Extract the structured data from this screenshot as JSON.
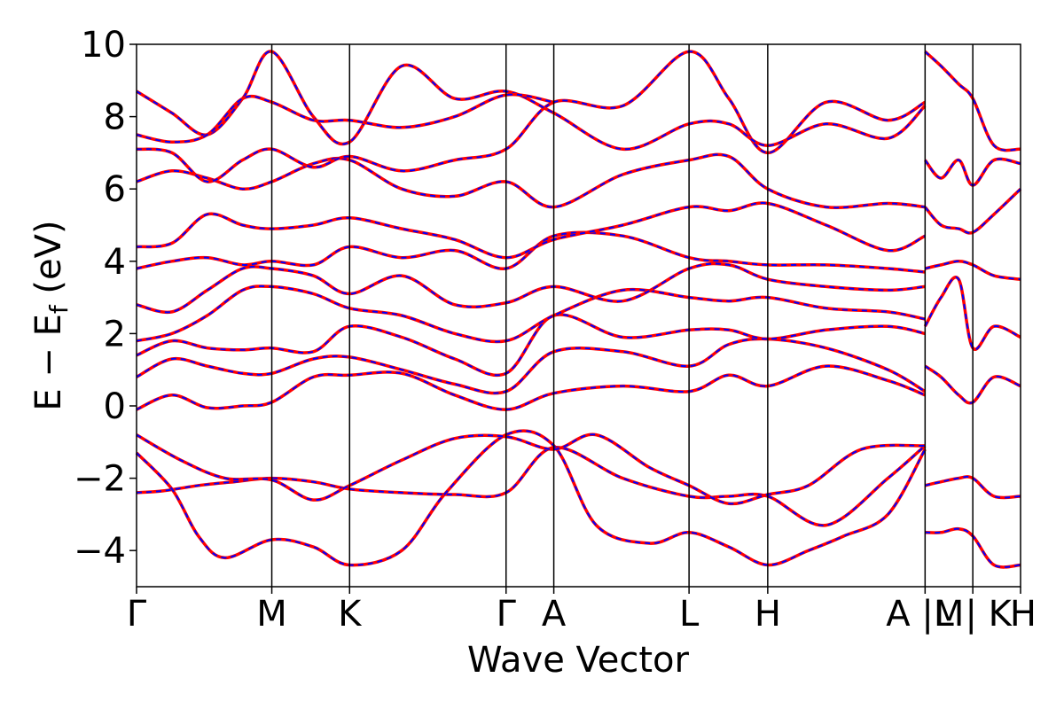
{
  "chart_data": {
    "type": "line",
    "title": "",
    "xlabel": "Wave Vector",
    "ylabel": "E − E",
    "ylabel_sub": "f",
    "ylabel_unit": " (eV)",
    "ylim": [
      -5,
      10
    ],
    "yticks": [
      10,
      8,
      6,
      4,
      2,
      0,
      -2,
      -4
    ],
    "ytick_labels": [
      "10",
      "8",
      "6",
      "4",
      "2",
      "0",
      "−2",
      "−4"
    ],
    "xlim": [
      0,
      1
    ],
    "xticks": [
      {
        "x": 0.0,
        "label": "Γ"
      },
      {
        "x": 0.153,
        "label": "M"
      },
      {
        "x": 0.241,
        "label": "K"
      },
      {
        "x": 0.418,
        "label": "Γ"
      },
      {
        "x": 0.472,
        "label": "A"
      },
      {
        "x": 0.625,
        "label": "L"
      },
      {
        "x": 0.714,
        "label": "H"
      },
      {
        "x": 0.892,
        "label": "A |M"
      },
      {
        "x": 0.946,
        "label": "L | K"
      },
      {
        "x": 1.0,
        "label": "H"
      }
    ],
    "vlines": [
      0.153,
      0.241,
      0.418,
      0.472,
      0.625,
      0.714,
      0.892,
      0.946
    ],
    "grid": false,
    "legend": "none",
    "style": {
      "band_color": "#ff0000",
      "overlay_color": "#0000ff",
      "overlay_dash": "dashed"
    },
    "series": [
      {
        "x": [
          0,
          0.03,
          0.07,
          0.11,
          0.153,
          0.2,
          0.241,
          0.3,
          0.36,
          0.418,
          0.472,
          0.55,
          0.625,
          0.67,
          0.714,
          0.78,
          0.85,
          0.892
        ],
        "values": [
          -2.4,
          -2.35,
          -2.2,
          -2.1,
          -2.0,
          -2.1,
          -2.3,
          -2.4,
          -2.45,
          -2.4,
          -1.15,
          -2.0,
          -2.5,
          -2.5,
          -2.5,
          -3.3,
          -2.0,
          -1.1
        ]
      },
      {
        "x": [
          0,
          0.04,
          0.07,
          0.1,
          0.153,
          0.2,
          0.241,
          0.3,
          0.35,
          0.418,
          0.472,
          0.52,
          0.58,
          0.625,
          0.67,
          0.714,
          0.76,
          0.8,
          0.85,
          0.892
        ],
        "values": [
          -1.3,
          -2.3,
          -3.6,
          -4.2,
          -3.7,
          -3.9,
          -4.4,
          -4.0,
          -2.4,
          -0.8,
          -1.1,
          -3.3,
          -3.8,
          -3.5,
          -3.9,
          -4.4,
          -4.0,
          -3.6,
          -3.0,
          -1.2
        ]
      },
      {
        "x": [
          0,
          0.05,
          0.1,
          0.153,
          0.2,
          0.241,
          0.3,
          0.36,
          0.418,
          0.472,
          0.52,
          0.58,
          0.625,
          0.67,
          0.714,
          0.76,
          0.82,
          0.892
        ],
        "values": [
          -0.8,
          -1.5,
          -2.0,
          -2.05,
          -2.6,
          -2.2,
          -1.5,
          -0.9,
          -0.85,
          -1.2,
          -0.8,
          -1.7,
          -2.2,
          -2.7,
          -2.45,
          -2.2,
          -1.2,
          -1.1
        ]
      },
      {
        "x": [
          0,
          0.04,
          0.08,
          0.12,
          0.153,
          0.2,
          0.241,
          0.3,
          0.36,
          0.418,
          0.472,
          0.55,
          0.625,
          0.67,
          0.714,
          0.78,
          0.85,
          0.892
        ],
        "values": [
          -0.1,
          0.3,
          -0.05,
          0.0,
          0.1,
          0.8,
          0.85,
          0.9,
          0.3,
          -0.1,
          0.35,
          0.55,
          0.4,
          0.85,
          0.55,
          1.1,
          0.7,
          0.3
        ]
      },
      {
        "x": [
          0,
          0.04,
          0.08,
          0.12,
          0.153,
          0.2,
          0.241,
          0.3,
          0.36,
          0.418,
          0.472,
          0.55,
          0.625,
          0.67,
          0.714,
          0.78,
          0.85,
          0.892
        ],
        "values": [
          0.8,
          1.3,
          1.1,
          0.9,
          0.9,
          1.3,
          1.35,
          1.0,
          0.6,
          0.4,
          1.5,
          1.5,
          1.1,
          1.7,
          1.85,
          1.6,
          1.0,
          0.4
        ]
      },
      {
        "x": [
          0,
          0.04,
          0.08,
          0.12,
          0.153,
          0.2,
          0.241,
          0.3,
          0.36,
          0.418,
          0.472,
          0.55,
          0.625,
          0.67,
          0.714,
          0.78,
          0.85,
          0.892
        ],
        "values": [
          1.4,
          1.8,
          1.6,
          1.55,
          1.6,
          1.5,
          2.2,
          1.9,
          1.3,
          0.9,
          2.5,
          1.9,
          2.1,
          2.1,
          1.85,
          2.1,
          2.2,
          2.0
        ]
      },
      {
        "x": [
          0,
          0.04,
          0.08,
          0.12,
          0.153,
          0.2,
          0.241,
          0.3,
          0.36,
          0.418,
          0.472,
          0.55,
          0.625,
          0.67,
          0.714,
          0.78,
          0.85,
          0.892
        ],
        "values": [
          1.8,
          2.0,
          2.5,
          3.2,
          3.3,
          3.1,
          2.7,
          2.5,
          2.0,
          1.8,
          2.5,
          3.2,
          3.0,
          2.9,
          3.0,
          2.7,
          2.6,
          2.4
        ]
      },
      {
        "x": [
          0,
          0.04,
          0.08,
          0.12,
          0.153,
          0.2,
          0.241,
          0.3,
          0.36,
          0.418,
          0.472,
          0.55,
          0.625,
          0.67,
          0.714,
          0.78,
          0.85,
          0.892
        ],
        "values": [
          2.8,
          2.6,
          3.2,
          3.8,
          3.8,
          3.6,
          3.1,
          3.6,
          2.8,
          2.85,
          3.3,
          2.9,
          3.8,
          3.9,
          3.5,
          3.3,
          3.2,
          3.3
        ]
      },
      {
        "x": [
          0,
          0.04,
          0.08,
          0.12,
          0.153,
          0.2,
          0.241,
          0.3,
          0.36,
          0.418,
          0.472,
          0.55,
          0.625,
          0.67,
          0.714,
          0.78,
          0.85,
          0.892
        ],
        "values": [
          3.8,
          4.0,
          4.1,
          3.9,
          4.0,
          3.9,
          4.4,
          4.1,
          4.3,
          3.8,
          4.7,
          4.7,
          4.1,
          4.0,
          3.9,
          3.9,
          3.8,
          3.7
        ]
      },
      {
        "x": [
          0,
          0.04,
          0.08,
          0.12,
          0.153,
          0.2,
          0.241,
          0.3,
          0.36,
          0.418,
          0.472,
          0.55,
          0.625,
          0.67,
          0.714,
          0.78,
          0.85,
          0.892
        ],
        "values": [
          4.4,
          4.5,
          5.3,
          5.0,
          4.9,
          5.0,
          5.2,
          4.9,
          4.6,
          4.1,
          4.6,
          5.0,
          5.5,
          5.4,
          5.6,
          5.0,
          4.3,
          4.7
        ]
      },
      {
        "x": [
          0,
          0.04,
          0.08,
          0.12,
          0.153,
          0.2,
          0.241,
          0.3,
          0.36,
          0.418,
          0.472,
          0.55,
          0.625,
          0.67,
          0.714,
          0.78,
          0.85,
          0.892
        ],
        "values": [
          6.2,
          6.5,
          6.3,
          6.0,
          6.2,
          6.7,
          6.8,
          6.0,
          5.8,
          6.2,
          5.5,
          6.4,
          6.8,
          6.9,
          6.0,
          5.5,
          5.6,
          5.5
        ]
      },
      {
        "x": [
          0,
          0.04,
          0.08,
          0.12,
          0.153,
          0.2,
          0.241,
          0.3,
          0.36,
          0.418,
          0.472,
          0.55,
          0.625,
          0.67,
          0.714,
          0.78,
          0.85,
          0.892
        ],
        "values": [
          7.1,
          7.0,
          6.2,
          6.8,
          7.1,
          6.6,
          6.9,
          6.5,
          6.8,
          7.1,
          8.4,
          8.3,
          9.8,
          8.5,
          7.0,
          8.4,
          7.9,
          8.4
        ]
      },
      {
        "x": [
          0,
          0.04,
          0.08,
          0.12,
          0.153,
          0.2,
          0.241,
          0.3,
          0.36,
          0.418,
          0.472,
          0.55,
          0.625,
          0.67,
          0.714,
          0.78,
          0.85,
          0.892
        ],
        "values": [
          8.7,
          8.1,
          7.5,
          8.5,
          9.8,
          8.0,
          7.3,
          9.4,
          8.5,
          8.7,
          8.1,
          7.1,
          7.8,
          7.8,
          7.2,
          7.8,
          7.4,
          8.3
        ]
      },
      {
        "x": [
          0,
          0.04,
          0.08,
          0.12,
          0.153,
          0.2,
          0.241,
          0.3,
          0.36,
          0.418,
          0.472
        ],
        "values": [
          7.5,
          7.3,
          7.5,
          8.5,
          8.4,
          7.9,
          7.9,
          7.7,
          8.0,
          8.6,
          8.4
        ]
      },
      {
        "x": [
          0.892,
          0.91,
          0.93,
          0.946,
          0.97,
          1.0
        ],
        "values": [
          -2.2,
          -2.1,
          -2.0,
          -2.0,
          -2.5,
          -2.5
        ]
      },
      {
        "x": [
          0.892,
          0.91,
          0.93,
          0.946,
          0.97,
          1.0
        ],
        "values": [
          -3.5,
          -3.5,
          -3.4,
          -3.6,
          -4.4,
          -4.4
        ]
      },
      {
        "x": [
          0.892,
          0.91,
          0.93,
          0.946,
          0.97,
          1.0
        ],
        "values": [
          1.1,
          0.8,
          0.3,
          0.1,
          0.8,
          0.55
        ]
      },
      {
        "x": [
          0.892,
          0.91,
          0.93,
          0.946,
          0.97,
          1.0
        ],
        "values": [
          2.2,
          3.0,
          3.5,
          1.6,
          2.2,
          1.9
        ]
      },
      {
        "x": [
          0.892,
          0.91,
          0.93,
          0.946,
          0.97,
          1.0
        ],
        "values": [
          3.8,
          3.9,
          4.0,
          3.9,
          3.6,
          3.5
        ]
      },
      {
        "x": [
          0.892,
          0.91,
          0.93,
          0.946,
          0.97,
          1.0
        ],
        "values": [
          5.5,
          5.0,
          4.9,
          4.8,
          5.3,
          6.0
        ]
      },
      {
        "x": [
          0.892,
          0.91,
          0.93,
          0.946,
          0.97,
          1.0
        ],
        "values": [
          6.8,
          6.3,
          6.8,
          6.1,
          6.8,
          6.7
        ]
      },
      {
        "x": [
          0.892,
          0.91,
          0.93,
          0.946,
          0.97,
          1.0
        ],
        "values": [
          9.8,
          9.4,
          8.9,
          8.5,
          7.2,
          7.1
        ]
      }
    ]
  }
}
